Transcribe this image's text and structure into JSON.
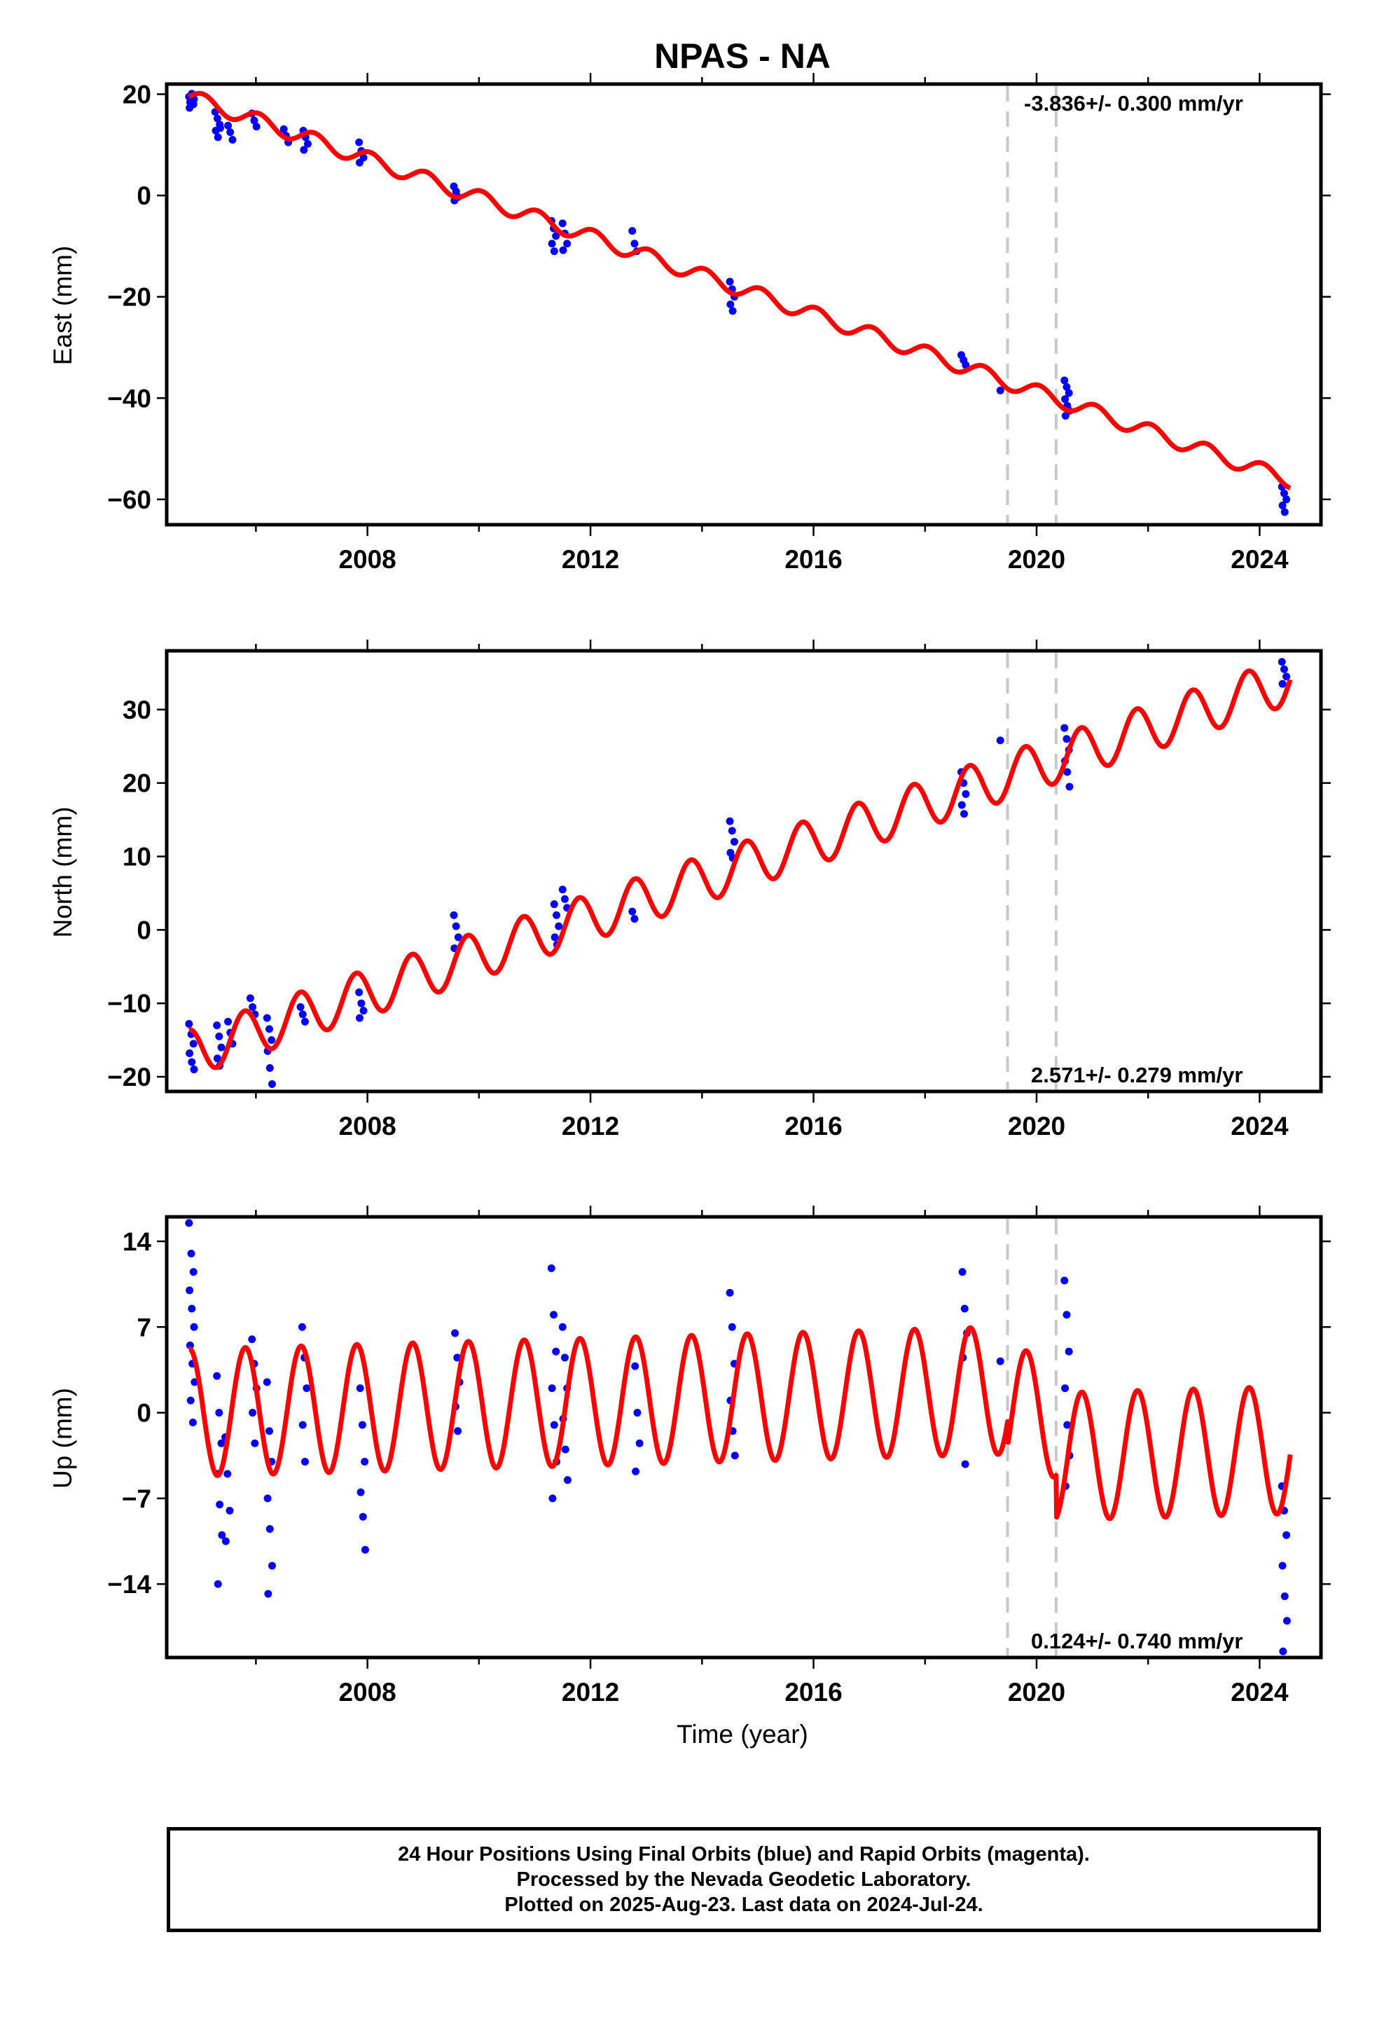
{
  "footer": {
    "line1": "24 Hour Positions Using Final Orbits (blue) and Rapid Orbits (magenta).",
    "line2": "Processed by the Nevada Geodetic Laboratory.",
    "line3": "Plotted on 2025-Aug-23. Last data on 2024-Jul-24."
  },
  "colors": {
    "data_points": "#0000ff",
    "model": "#ff0000",
    "event_lines": "#c8c8c8"
  },
  "chart_data": [
    {
      "type": "scatter",
      "title": "NPAS - NA",
      "xlabel": "",
      "ylabel": "East (mm)",
      "xlim": [
        2004.4,
        2025.1
      ],
      "ylim": [
        -65,
        22
      ],
      "xticks": [
        2008,
        2012,
        2016,
        2020,
        2024
      ],
      "yticks": [
        -60,
        -40,
        -20,
        0,
        20
      ],
      "rate_label": "-3.836+/- 0.300 mm/yr",
      "rate_position": "top-right",
      "event_lines": [
        2019.48,
        2020.35
      ],
      "model": {
        "name": "model",
        "anchor": 2004.8,
        "start": 19.5,
        "slope": -3.836,
        "amp": 1.5,
        "phase": 0.0,
        "range": [
          2004.8,
          2024.55
        ]
      },
      "points": [
        {
          "t": 2004.85,
          "values": [
            19.5,
            18.8,
            18.0,
            17.3,
            20.1,
            19.0,
            18.4
          ]
        },
        {
          "t": 2005.32,
          "values": [
            16.5,
            15.2,
            14.0,
            12.8,
            11.5,
            13.3
          ]
        },
        {
          "t": 2005.55,
          "values": [
            13.8,
            12.5,
            11.0
          ]
        },
        {
          "t": 2005.98,
          "values": [
            16.2,
            14.8,
            13.6
          ]
        },
        {
          "t": 2006.55,
          "values": [
            13.1,
            11.8,
            10.5
          ]
        },
        {
          "t": 2006.9,
          "values": [
            12.8,
            11.5,
            10.2,
            9.0
          ]
        },
        {
          "t": 2007.9,
          "values": [
            10.5,
            8.8,
            7.5,
            6.5
          ]
        },
        {
          "t": 2009.6,
          "values": [
            1.8,
            0.8,
            -0.3,
            -1.0
          ]
        },
        {
          "t": 2011.35,
          "values": [
            -5.0,
            -6.5,
            -8.0,
            -9.5,
            -11.0
          ]
        },
        {
          "t": 2011.55,
          "values": [
            -5.5,
            -7.5,
            -9.5,
            -10.8
          ]
        },
        {
          "t": 2012.8,
          "values": [
            -7.0,
            -9.5,
            -11.0
          ]
        },
        {
          "t": 2014.55,
          "values": [
            -17.0,
            -18.5,
            -20.0,
            -21.5,
            -22.8
          ]
        },
        {
          "t": 2018.7,
          "values": [
            -31.5,
            -32.5,
            -33.5
          ]
        },
        {
          "t": 2019.4,
          "values": [
            -38.5
          ]
        },
        {
          "t": 2020.55,
          "values": [
            -36.5,
            -37.8,
            -39.0,
            -40.2,
            -41.5,
            -42.5,
            -43.5
          ]
        },
        {
          "t": 2024.45,
          "values": [
            -57.5,
            -58.8,
            -60.0,
            -61.2,
            -62.5
          ]
        }
      ]
    },
    {
      "type": "scatter",
      "title": "",
      "xlabel": "",
      "ylabel": "North (mm)",
      "xlim": [
        2004.4,
        2025.1
      ],
      "ylim": [
        -22,
        38
      ],
      "xticks": [
        2008,
        2012,
        2016,
        2020,
        2024
      ],
      "yticks": [
        -20,
        -10,
        0,
        10,
        20,
        30
      ],
      "rate_label": "2.571+/- 0.279 mm/yr",
      "rate_position": "bottom-right",
      "event_lines": [
        2019.48,
        2020.35
      ],
      "model": {
        "name": "model",
        "anchor": 2004.8,
        "start": -16.8,
        "slope": 2.571,
        "amp": 3.2,
        "phase": 1.6,
        "range": [
          2004.8,
          2024.55
        ]
      },
      "points": [
        {
          "t": 2004.85,
          "values": [
            -12.8,
            -14.2,
            -15.5,
            -16.8,
            -18.0,
            -19.0
          ]
        },
        {
          "t": 2005.35,
          "values": [
            -13.0,
            -14.5,
            -16.0,
            -17.5,
            -18.5
          ]
        },
        {
          "t": 2005.55,
          "values": [
            -12.5,
            -14.0,
            -15.5
          ]
        },
        {
          "t": 2005.95,
          "values": [
            -9.3,
            -10.5,
            -11.5
          ]
        },
        {
          "t": 2006.25,
          "values": [
            -12.0,
            -13.5,
            -15.0,
            -16.5,
            -18.8,
            -21.0
          ]
        },
        {
          "t": 2006.85,
          "values": [
            -10.5,
            -11.5,
            -12.5
          ]
        },
        {
          "t": 2007.9,
          "values": [
            -8.5,
            -10.0,
            -11.0,
            -12.0
          ]
        },
        {
          "t": 2009.6,
          "values": [
            2.0,
            0.5,
            -1.0,
            -2.5
          ]
        },
        {
          "t": 2011.4,
          "values": [
            3.5,
            2.0,
            0.5,
            -1.0,
            -2.0
          ]
        },
        {
          "t": 2011.55,
          "values": [
            5.5,
            4.2,
            3.0
          ]
        },
        {
          "t": 2012.8,
          "values": [
            2.5,
            1.5
          ]
        },
        {
          "t": 2014.55,
          "values": [
            14.8,
            13.5,
            12.0,
            10.5,
            9.8
          ]
        },
        {
          "t": 2018.7,
          "values": [
            21.5,
            20.0,
            18.5,
            17.0,
            15.8
          ]
        },
        {
          "t": 2019.4,
          "values": [
            25.8
          ]
        },
        {
          "t": 2020.55,
          "values": [
            27.5,
            26.0,
            24.5,
            23.0,
            21.5,
            19.5
          ]
        },
        {
          "t": 2024.45,
          "values": [
            36.5,
            35.5,
            34.5,
            33.5
          ]
        }
      ]
    },
    {
      "type": "scatter",
      "title": "",
      "xlabel": "Time (year)",
      "ylabel": "Up (mm)",
      "xlim": [
        2004.4,
        2025.1
      ],
      "ylim": [
        -20,
        16
      ],
      "xticks": [
        2008,
        2012,
        2016,
        2020,
        2024
      ],
      "yticks": [
        -14,
        -7,
        0,
        7,
        14
      ],
      "rate_label": "0.124+/- 0.740 mm/yr",
      "rate_position": "bottom-right",
      "event_lines": [
        2019.48,
        2020.35
      ],
      "model": {
        "name": "model",
        "anchor": 2004.8,
        "start": 0.0,
        "slope": 0.124,
        "amp": 5.2,
        "phase": 1.5,
        "range": [
          2004.8,
          2024.55
        ],
        "offsets": [
          {
            "t": 2019.48,
            "d": -2.0
          },
          {
            "t": 2020.35,
            "d": -3.5
          }
        ]
      },
      "points": [
        {
          "t": 2004.85,
          "values": [
            15.5,
            13.0,
            11.5,
            10.0,
            8.5,
            7.0,
            5.5,
            4.0,
            2.5,
            1.0,
            -0.8
          ]
        },
        {
          "t": 2005.35,
          "values": [
            3.0,
            0.0,
            -2.5,
            -5.0,
            -7.5,
            -10.0,
            -14.0
          ]
        },
        {
          "t": 2005.5,
          "values": [
            -2.0,
            -5.0,
            -8.0,
            -10.5
          ]
        },
        {
          "t": 2005.98,
          "values": [
            6.0,
            4.0,
            2.0,
            0.0,
            -2.5
          ]
        },
        {
          "t": 2006.25,
          "values": [
            2.5,
            -1.5,
            -4.0,
            -7.0,
            -9.5,
            -12.5,
            -14.8
          ]
        },
        {
          "t": 2006.88,
          "values": [
            7.0,
            4.5,
            2.0,
            -1.0,
            -4.0
          ]
        },
        {
          "t": 2007.92,
          "values": [
            2.0,
            -1.0,
            -4.0,
            -6.5,
            -8.5,
            -11.2
          ]
        },
        {
          "t": 2009.62,
          "values": [
            6.5,
            4.5,
            2.5,
            0.5,
            -1.5
          ]
        },
        {
          "t": 2011.35,
          "values": [
            11.8,
            8.0,
            5.0,
            2.0,
            -1.0,
            -4.0,
            -7.0
          ]
        },
        {
          "t": 2011.55,
          "values": [
            7.0,
            4.5,
            2.0,
            -0.5,
            -3.0,
            -5.5
          ]
        },
        {
          "t": 2012.85,
          "values": [
            3.8,
            0.0,
            -2.5,
            -4.8
          ]
        },
        {
          "t": 2014.55,
          "values": [
            9.8,
            7.0,
            4.0,
            1.0,
            -1.5,
            -3.5
          ]
        },
        {
          "t": 2018.72,
          "values": [
            11.5,
            8.5,
            6.5,
            4.5,
            -4.2
          ]
        },
        {
          "t": 2019.4,
          "values": [
            4.2
          ]
        },
        {
          "t": 2020.55,
          "values": [
            10.8,
            8.0,
            5.0,
            2.0,
            -1.0,
            -3.5,
            -6.0
          ]
        },
        {
          "t": 2024.45,
          "values": [
            -6.0,
            -8.0,
            -10.0,
            -12.5,
            -15.0,
            -17.0,
            -19.5
          ]
        }
      ]
    }
  ]
}
